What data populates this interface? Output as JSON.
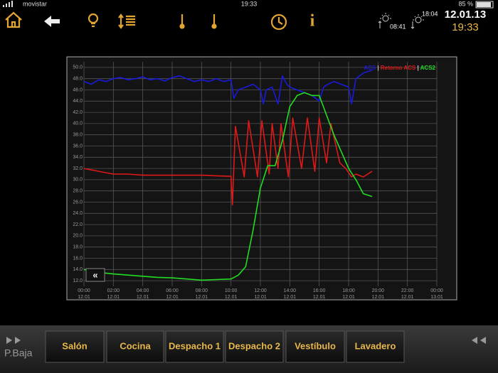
{
  "status_bar": {
    "carrier": "movistar",
    "time": "19:33",
    "battery": "85 %"
  },
  "toolbar": {
    "sun_rise": "08:41",
    "sun_set": "18:04",
    "date": "12.01.13",
    "clock": "19:33"
  },
  "chart_data": {
    "type": "line",
    "xlim": [
      0,
      24
    ],
    "ylim": [
      11,
      51
    ],
    "xticks": [
      {
        "value": 0,
        "label": "00:00"
      },
      {
        "value": 2,
        "label": "02:00"
      },
      {
        "value": 4,
        "label": "04:00"
      },
      {
        "value": 6,
        "label": "06:00"
      },
      {
        "value": 8,
        "label": "08:00"
      },
      {
        "value": 10,
        "label": "10:00"
      },
      {
        "value": 12,
        "label": "12:00"
      },
      {
        "value": 14,
        "label": "14:00"
      },
      {
        "value": 16,
        "label": "16:00"
      },
      {
        "value": 18,
        "label": "18:00"
      },
      {
        "value": 20,
        "label": "20:00"
      },
      {
        "value": 22,
        "label": "22:00"
      },
      {
        "value": 24,
        "label": "00:00"
      }
    ],
    "xtick_dates": [
      "12.01",
      "12.01",
      "12.01",
      "12.01",
      "12.01",
      "12.01",
      "12.01",
      "12.01",
      "12.01",
      "12.01",
      "12.01",
      "12.01",
      "13.01"
    ],
    "yticks": [
      {
        "value": 12,
        "label": "12.0"
      },
      {
        "value": 14,
        "label": "14.0"
      },
      {
        "value": 16,
        "label": "16.0"
      },
      {
        "value": 18,
        "label": "18.0"
      },
      {
        "value": 20,
        "label": "20.0"
      },
      {
        "value": 22,
        "label": "22.0"
      },
      {
        "value": 24,
        "label": "24.0"
      },
      {
        "value": 26,
        "label": "26.0"
      },
      {
        "value": 28,
        "label": "28.0"
      },
      {
        "value": 30,
        "label": "30.0"
      },
      {
        "value": 32,
        "label": "32.0"
      },
      {
        "value": 34,
        "label": "34.0"
      },
      {
        "value": 36,
        "label": "36.0"
      },
      {
        "value": 38,
        "label": "38.0"
      },
      {
        "value": 40,
        "label": "40.0"
      },
      {
        "value": 42,
        "label": "42.0"
      },
      {
        "value": 44,
        "label": "44.0"
      },
      {
        "value": 46,
        "label": "46.0"
      },
      {
        "value": 48,
        "label": "48.0"
      },
      {
        "value": 50,
        "label": "50.0"
      }
    ],
    "grid": true,
    "legend": "top-right",
    "series": [
      {
        "name": "ACS",
        "color": "#1a1adc",
        "x": [
          0,
          0.5,
          1,
          1.5,
          2,
          2.5,
          3,
          3.5,
          4,
          4.5,
          5,
          5.5,
          6,
          6.5,
          7,
          7.5,
          8,
          8.5,
          9,
          9.5,
          10,
          10.2,
          10.5,
          11,
          11.5,
          12,
          12.2,
          12.4,
          12.8,
          13.2,
          13.5,
          13.8,
          14,
          14.5,
          15,
          15.5,
          16,
          16.3,
          16.6,
          17,
          17.5,
          18,
          18.2,
          18.5,
          19,
          19.6
        ],
        "values": [
          47.5,
          47,
          47.8,
          47.5,
          48,
          48.2,
          47.8,
          48,
          48.3,
          47.8,
          48,
          47.6,
          48.2,
          48.5,
          48,
          47.5,
          47.8,
          47.5,
          48,
          47.5,
          47.8,
          44.5,
          46,
          46.5,
          47,
          46,
          43.5,
          46,
          46.5,
          43.5,
          48.5,
          47,
          46.5,
          46,
          45.5,
          45,
          44,
          46.5,
          47,
          47.5,
          47,
          46.5,
          43.5,
          48,
          49,
          49.5
        ]
      },
      {
        "name": "Retorno ACS",
        "color": "#e01818",
        "x": [
          0,
          1,
          2,
          3,
          4,
          5,
          6,
          7,
          8,
          9,
          10,
          10.05,
          10.1,
          10.3,
          10.9,
          11.2,
          11.8,
          12.1,
          12.6,
          12.8,
          13.2,
          13.4,
          13.9,
          14.2,
          14.8,
          15.2,
          15.7,
          16,
          16.5,
          16.8,
          17.4,
          17.8,
          18.2,
          18.5,
          19,
          19.6
        ],
        "values": [
          32,
          31.5,
          31,
          31,
          30.8,
          30.8,
          30.8,
          30.8,
          30.8,
          30.7,
          30.6,
          28,
          25.5,
          39.5,
          30.5,
          40.5,
          30.5,
          40.5,
          31,
          40,
          32,
          40,
          30.5,
          41,
          32,
          41,
          31.5,
          41,
          33,
          40,
          33,
          32,
          30.5,
          31,
          30.5,
          31.5
        ]
      },
      {
        "name": "ACS2",
        "color": "#22dd22",
        "x": [
          0,
          1,
          2,
          3,
          4,
          5,
          6,
          7,
          8,
          9,
          10,
          10.5,
          11,
          11.5,
          12,
          12.5,
          13,
          13.5,
          14,
          14.5,
          15,
          15.5,
          16,
          16.5,
          17,
          17.5,
          18,
          18.5,
          19,
          19.6
        ],
        "values": [
          14,
          13.5,
          13.2,
          13,
          12.8,
          12.6,
          12.5,
          12.3,
          12.1,
          12.2,
          12.3,
          13,
          14.5,
          21,
          28.5,
          32.5,
          32.5,
          37,
          43,
          45,
          45.5,
          45,
          45,
          41.5,
          38,
          35,
          32,
          30,
          27.5,
          27
        ]
      }
    ]
  },
  "footer": {
    "floor": "P.Baja",
    "tabs": [
      "Salón",
      "Cocina",
      "Despacho 1",
      "Despacho 2",
      "Vestíbulo",
      "Lavadero"
    ]
  }
}
